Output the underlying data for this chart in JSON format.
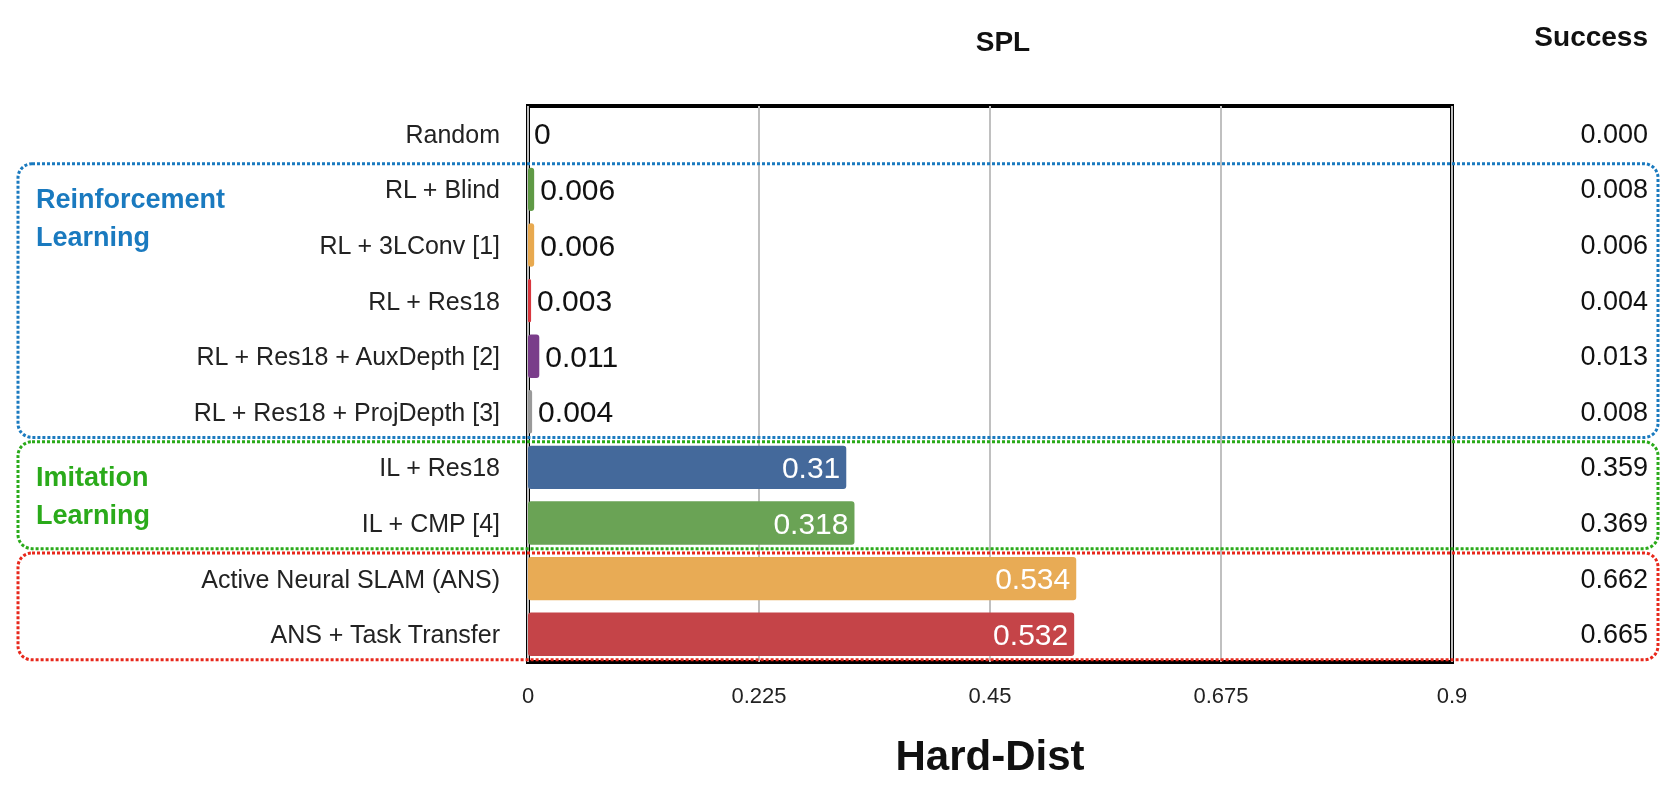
{
  "chart_data": {
    "type": "bar",
    "orientation": "horizontal",
    "title": "SPL",
    "xlabel": "Hard-Dist",
    "categories": [
      "Random",
      "RL + Blind",
      "RL + 3LConv [1]",
      "RL + Res18",
      "RL + Res18 + AuxDepth [2]",
      "RL + Res18 + ProjDepth [3]",
      "IL + Res18",
      "IL + CMP [4]",
      "Active Neural SLAM (ANS)",
      "ANS + Task Transfer"
    ],
    "values": [
      0,
      0.006,
      0.006,
      0.003,
      0.011,
      0.004,
      0.31,
      0.318,
      0.534,
      0.532
    ],
    "colors": [
      "#888888",
      "#5f9a45",
      "#e8a94f",
      "#d9363e",
      "#7a3d8a",
      "#9a9a9a",
      "#44699b",
      "#6aa355",
      "#e8ab55",
      "#c54448"
    ],
    "data_labels": true,
    "xlim": [
      0,
      0.9
    ],
    "xticks": [
      0,
      0.225,
      0.45,
      0.675,
      0.9
    ],
    "grid": "x",
    "annotations": [
      "Success",
      "0.000",
      "0.008",
      "0.006",
      "0.004",
      "0.013",
      "0.008",
      "0.359",
      "0.369",
      "0.662",
      "0.665",
      "Reinforcement Learning",
      "Imitation Learning"
    ]
  }
}
